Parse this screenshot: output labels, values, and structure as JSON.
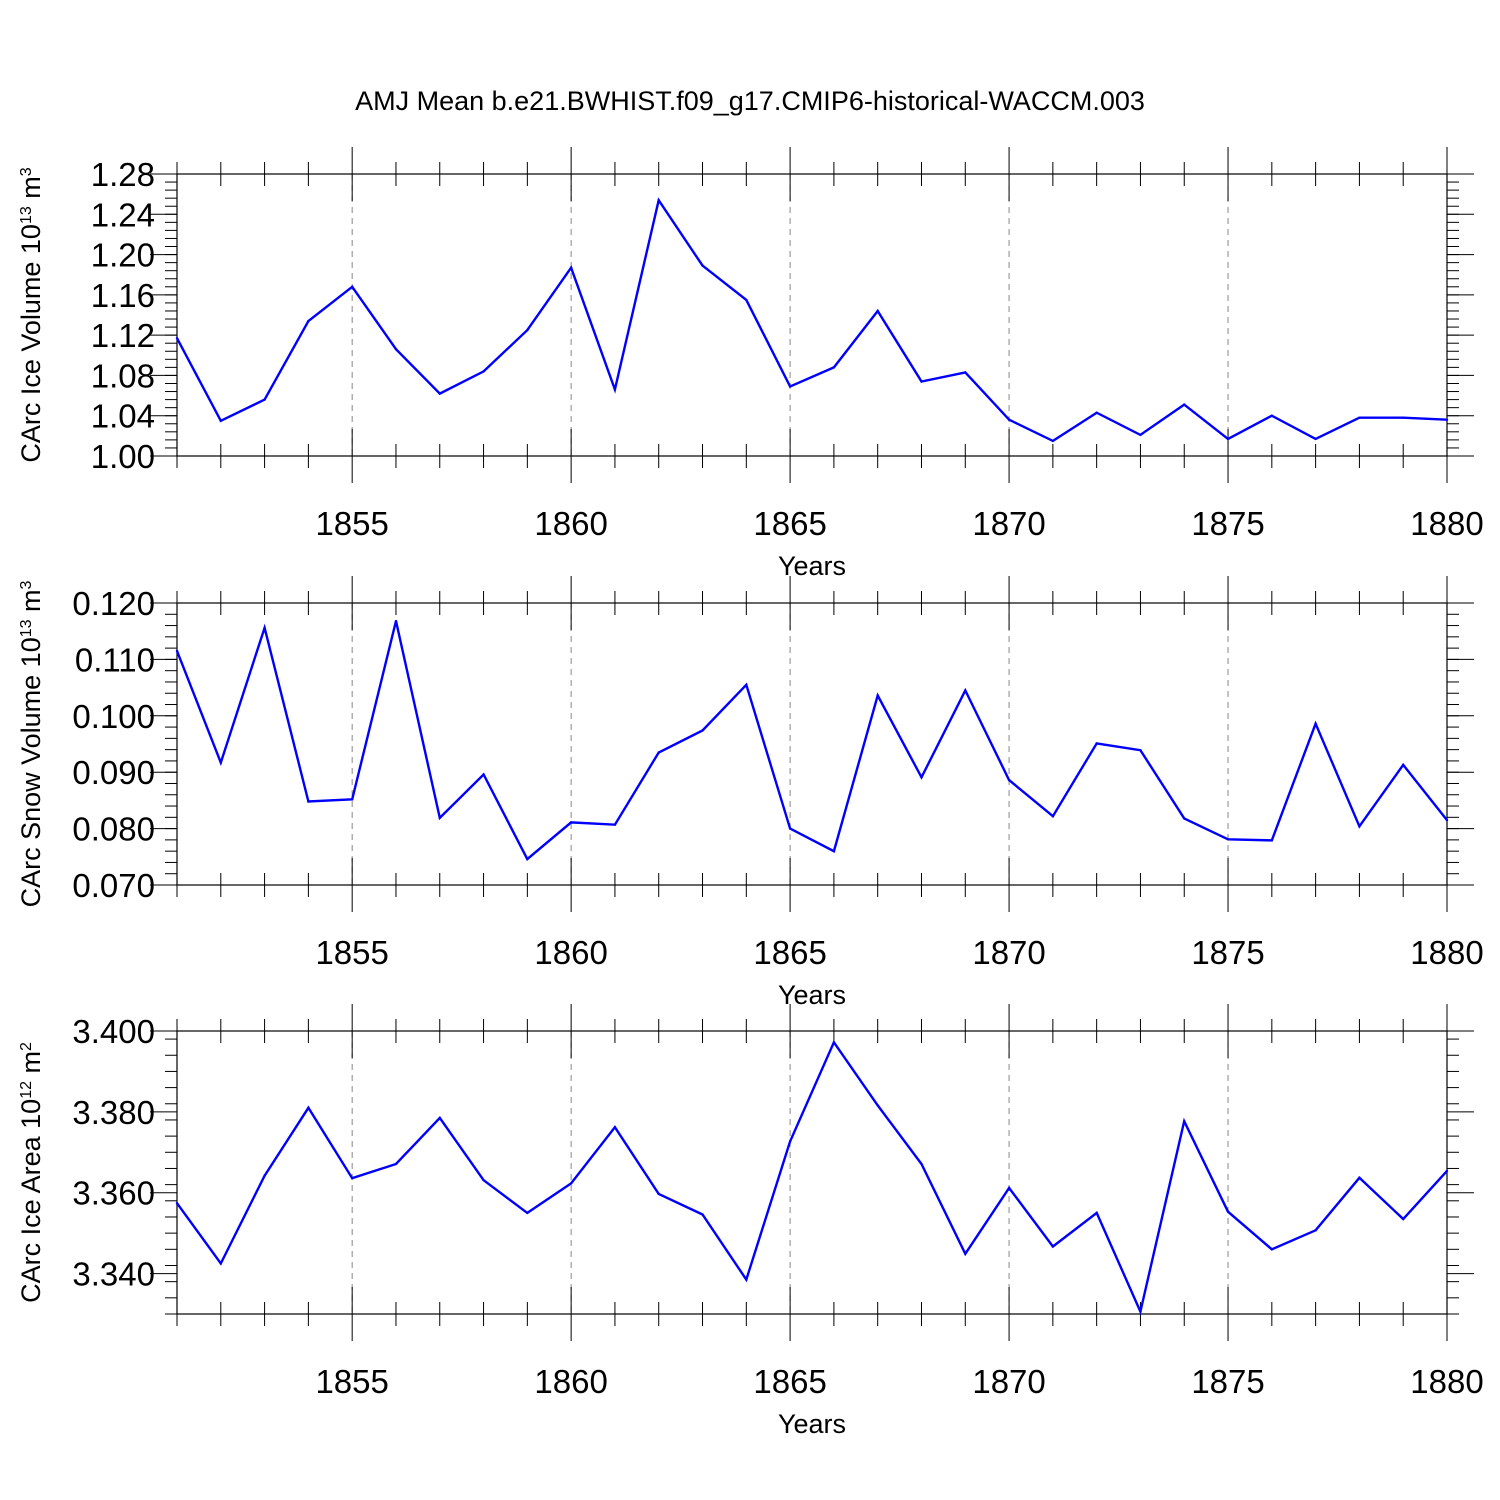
{
  "chart_data": {
    "title": "AMJ Mean b.e21.BWHIST.f09_g17.CMIP6-historical-WACCM.003",
    "colors": {
      "line": "#0000ff",
      "axis": "#000000",
      "grid": "#888888"
    },
    "panels": [
      {
        "type": "line",
        "ylabel": {
          "text": "CArc Ice Volume 10",
          "exp": "13",
          "unit": " m",
          "unit_exp": "3"
        },
        "xlabel": "Years",
        "xlim": [
          1851,
          1880
        ],
        "ylim": [
          1.0,
          1.28
        ],
        "yticks": [
          1.0,
          1.04,
          1.08,
          1.12,
          1.16,
          1.2,
          1.24,
          1.28
        ],
        "ytick_labels": [
          "1.00",
          "1.04",
          "1.08",
          "1.12",
          "1.16",
          "1.20",
          "1.24",
          "1.28"
        ],
        "xticks": [
          1855,
          1860,
          1865,
          1870,
          1875,
          1880
        ],
        "xtick_labels": [
          "1855",
          "1860",
          "1865",
          "1870",
          "1875",
          "1880"
        ],
        "grid": "vertical dashed at major x ticks",
        "x": [
          1851,
          1852,
          1853,
          1854,
          1855,
          1856,
          1857,
          1858,
          1859,
          1860,
          1861,
          1862,
          1863,
          1864,
          1865,
          1866,
          1867,
          1868,
          1869,
          1870,
          1871,
          1872,
          1873,
          1874,
          1875,
          1876,
          1877,
          1878,
          1879,
          1880
        ],
        "values": [
          1.117,
          1.035,
          1.056,
          1.134,
          1.168,
          1.106,
          1.062,
          1.084,
          1.125,
          1.187,
          1.066,
          1.254,
          1.189,
          1.155,
          1.069,
          1.088,
          1.144,
          1.074,
          1.083,
          1.036,
          1.015,
          1.043,
          1.021,
          1.051,
          1.017,
          1.04,
          1.017,
          1.038,
          1.038,
          1.036
        ]
      },
      {
        "type": "line",
        "ylabel": {
          "text": "CArc Snow Volume 10",
          "exp": "13",
          "unit": " m",
          "unit_exp": "3"
        },
        "xlabel": "Years",
        "xlim": [
          1851,
          1880
        ],
        "ylim": [
          0.07,
          0.12
        ],
        "yticks": [
          0.07,
          0.08,
          0.09,
          0.1,
          0.11,
          0.12
        ],
        "ytick_labels": [
          "0.070",
          "0.080",
          "0.090",
          "0.100",
          "0.110",
          "0.120"
        ],
        "xticks": [
          1855,
          1860,
          1865,
          1870,
          1875,
          1880
        ],
        "xtick_labels": [
          "1855",
          "1860",
          "1865",
          "1870",
          "1875",
          "1880"
        ],
        "grid": "vertical dashed at major x ticks",
        "x": [
          1851,
          1852,
          1853,
          1854,
          1855,
          1856,
          1857,
          1858,
          1859,
          1860,
          1861,
          1862,
          1863,
          1864,
          1865,
          1866,
          1867,
          1868,
          1869,
          1870,
          1871,
          1872,
          1873,
          1874,
          1875,
          1876,
          1877,
          1878,
          1879,
          1880
        ],
        "values": [
          0.1115,
          0.0917,
          0.1156,
          0.0848,
          0.0852,
          0.1168,
          0.0819,
          0.0896,
          0.0746,
          0.0811,
          0.0807,
          0.0935,
          0.0974,
          0.1055,
          0.08,
          0.076,
          0.1036,
          0.0891,
          0.1045,
          0.0886,
          0.0822,
          0.0951,
          0.0939,
          0.0818,
          0.0781,
          0.0779,
          0.0986,
          0.0804,
          0.0913,
          0.0815
        ]
      },
      {
        "type": "line",
        "ylabel": {
          "text": "CArc Ice Area 10",
          "exp": "12",
          "unit": " m",
          "unit_exp": "2"
        },
        "xlabel": "Years",
        "xlim": [
          1851,
          1880
        ],
        "ylim": [
          3.33,
          3.4
        ],
        "yticks": [
          3.34,
          3.36,
          3.38,
          3.4
        ],
        "ytick_labels": [
          "3.340",
          "3.360",
          "3.380",
          "3.400"
        ],
        "xticks": [
          1855,
          1860,
          1865,
          1870,
          1875,
          1880
        ],
        "xtick_labels": [
          "1855",
          "1860",
          "1865",
          "1870",
          "1875",
          "1880"
        ],
        "grid": "vertical dashed at major x ticks",
        "x": [
          1851,
          1852,
          1853,
          1854,
          1855,
          1856,
          1857,
          1858,
          1859,
          1860,
          1861,
          1862,
          1863,
          1864,
          1865,
          1866,
          1867,
          1868,
          1869,
          1870,
          1871,
          1872,
          1873,
          1874,
          1875,
          1876,
          1877,
          1878,
          1879,
          1880
        ],
        "values": [
          3.3574,
          3.3425,
          3.3642,
          3.381,
          3.3636,
          3.3671,
          3.3785,
          3.3631,
          3.355,
          3.3623,
          3.3762,
          3.3597,
          3.3546,
          3.3385,
          3.3727,
          3.3972,
          3.3816,
          3.3671,
          3.3449,
          3.3612,
          3.3467,
          3.355,
          3.3306,
          3.3777,
          3.3553,
          3.346,
          3.3507,
          3.3637,
          3.3535,
          3.3654
        ]
      }
    ]
  }
}
